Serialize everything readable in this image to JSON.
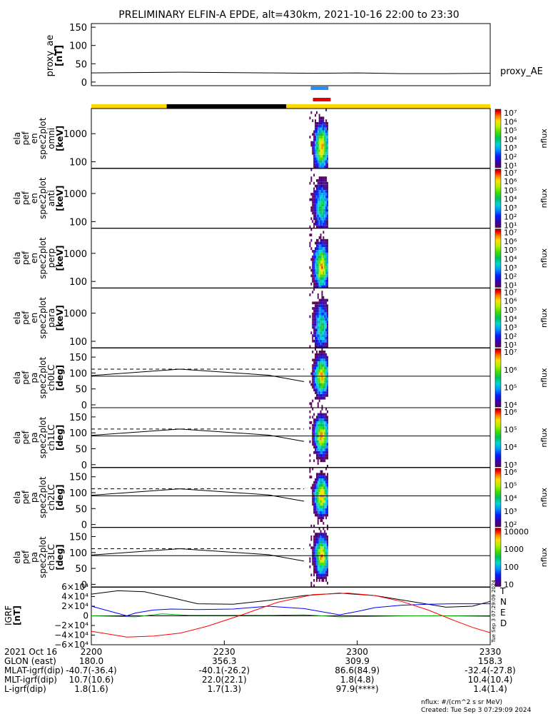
{
  "title": "PRELIMINARY ELFIN-A EPDE, alt=430km, 2021-10-16 22:00 to 23:30",
  "proxy": {
    "ylabel": "proxy_ae",
    "unit": "[nT]",
    "label": "proxy_AE",
    "ticks": [
      "150",
      "100",
      "50",
      "0"
    ],
    "ylim": [
      -10,
      160
    ],
    "x": [
      0,
      10,
      20,
      30,
      40,
      50,
      60,
      70,
      80,
      90
    ],
    "y": [
      25,
      26,
      27,
      26,
      25,
      24,
      25,
      23,
      23,
      24
    ]
  },
  "status_bars": {
    "segments": [
      {
        "start": 0,
        "end": 17,
        "color": "#ffd800"
      },
      {
        "start": 17,
        "end": 44,
        "color": "#000000"
      },
      {
        "start": 44,
        "end": 90,
        "color": "#ffd800"
      }
    ],
    "blue_bar": {
      "start": 49.5,
      "end": 53.5,
      "color": "#1e90ff"
    },
    "red_bar": {
      "start": 50,
      "end": 54,
      "color": "#e00000"
    }
  },
  "spectra_panels": [
    {
      "label": [
        "ela",
        "pef",
        "en",
        "spec2plot",
        "omni",
        "[keV]"
      ],
      "ticks": [
        "1000",
        "100"
      ],
      "cbar_ticks": [
        "10⁷",
        "10⁶",
        "10⁵",
        "10⁴",
        "10³",
        "10²",
        "10¹"
      ],
      "cbar_unit": "nflux"
    },
    {
      "label": [
        "ela",
        "pef",
        "en",
        "spec2plot",
        "anti",
        "[keV]"
      ],
      "ticks": [
        "1000",
        "100"
      ],
      "cbar_ticks": [
        "10⁷",
        "10⁶",
        "10⁵",
        "10⁴",
        "10³",
        "10²",
        "10¹"
      ],
      "cbar_unit": "nflux"
    },
    {
      "label": [
        "ela",
        "pef",
        "en",
        "spec2plot",
        "perp",
        "[keV]"
      ],
      "ticks": [
        "1000",
        "100"
      ],
      "cbar_ticks": [
        "10⁷",
        "10⁶",
        "10⁵",
        "10⁴",
        "10³",
        "10²",
        "10¹"
      ],
      "cbar_unit": "nflux"
    },
    {
      "label": [
        "ela",
        "pef",
        "en",
        "spec2plot",
        "para",
        "[keV]"
      ],
      "ticks": [
        "1000",
        "100"
      ],
      "cbar_ticks": [
        "10⁷",
        "10⁶",
        "10⁵",
        "10⁴",
        "10³",
        "10²",
        "10¹"
      ],
      "cbar_unit": "nflux"
    }
  ],
  "pa_panels": [
    {
      "label": [
        "ela",
        "pef",
        "pa",
        "spec2plot",
        "ch0LC",
        "[deg]"
      ],
      "ticks": [
        "150",
        "100",
        "50",
        "0"
      ],
      "cbar_ticks": [
        "10⁷",
        "10⁶",
        "10⁵",
        "10⁴"
      ],
      "cbar_unit": "nflux"
    },
    {
      "label": [
        "ela",
        "pef",
        "pa",
        "spec2plot",
        "ch1LC",
        "[deg]"
      ],
      "ticks": [
        "150",
        "100",
        "50",
        "0"
      ],
      "cbar_ticks": [
        "10⁶",
        "10⁵",
        "10⁴",
        "10³"
      ],
      "cbar_unit": "nflux"
    },
    {
      "label": [
        "ela",
        "pef",
        "pa",
        "spec2plot",
        "ch2LC",
        "[deg]"
      ],
      "ticks": [
        "150",
        "100",
        "50",
        "0"
      ],
      "cbar_ticks": [
        "10⁶",
        "10⁵",
        "10⁴",
        "10³",
        "10²"
      ],
      "cbar_unit": "nflux"
    },
    {
      "label": [
        "ela",
        "pef",
        "pa",
        "spec2plot",
        "ch3LC",
        "[deg]"
      ],
      "ticks": [
        "150",
        "100",
        "50",
        "0"
      ],
      "cbar_ticks": [
        "10000",
        "1000",
        "100",
        "10"
      ],
      "cbar_unit": "nflux"
    }
  ],
  "igrf": {
    "ylabel": "IGRF",
    "unit": "[nT]",
    "ticks": [
      "6×10⁴",
      "4×10⁴",
      "2×10⁴",
      "0",
      "−2×10⁴",
      "−4×10⁴",
      "−6×10⁴"
    ],
    "ylim": [
      -60000,
      60000
    ],
    "legend": [
      {
        "name": "T",
        "color": "#000000"
      },
      {
        "name": "N",
        "color": "#0000ff"
      },
      {
        "name": "E",
        "color": "#00aa00"
      },
      {
        "name": "D",
        "color": "#ff0000"
      }
    ],
    "series": {
      "T": {
        "x": [
          0,
          6,
          12,
          18,
          24,
          32,
          40,
          48,
          56,
          64,
          72,
          80,
          86,
          90
        ],
        "y": [
          45000,
          52000,
          50000,
          38000,
          25000,
          24000,
          32000,
          42000,
          47000,
          42000,
          30000,
          18000,
          20000,
          30000
        ]
      },
      "N": {
        "x": [
          0,
          6,
          8,
          10,
          14,
          18,
          24,
          32,
          40,
          48,
          56,
          60,
          64,
          70,
          76,
          82,
          90
        ],
        "y": [
          20000,
          5000,
          0,
          6000,
          12000,
          14000,
          13000,
          14000,
          20000,
          15000,
          2000,
          9000,
          17000,
          22000,
          24000,
          25000,
          25000
        ]
      },
      "E": {
        "x": [
          0,
          10,
          16,
          22,
          40,
          48,
          56,
          64,
          72,
          80,
          90
        ],
        "y": [
          0,
          -2000,
          4000,
          1000,
          1000,
          2000,
          -2000,
          -1000,
          0,
          0,
          -1000
        ]
      },
      "D": {
        "x": [
          0,
          8,
          14,
          20,
          26,
          34,
          42,
          50,
          58,
          64,
          70,
          76,
          82,
          86,
          90
        ],
        "y": [
          -32000,
          -44000,
          -42000,
          -36000,
          -22000,
          2000,
          28000,
          44000,
          47000,
          42000,
          30000,
          12000,
          -10000,
          -24000,
          -35000
        ]
      }
    },
    "side_text": "Tue Sep  3 07:29:09 2024"
  },
  "xaxis": {
    "ticks": [
      "2200",
      "2230",
      "2300",
      "2330"
    ],
    "tick_minutes": [
      0,
      30,
      60,
      90
    ],
    "range_minutes": [
      0,
      90
    ]
  },
  "footer": {
    "rows": [
      {
        "label": "2021 Oct 16",
        "values": [
          "2200",
          "2230",
          "2300",
          "2330"
        ]
      },
      {
        "label": "GLON (east)",
        "values": [
          "180.0",
          "356.3",
          "309.9",
          "158.3"
        ]
      },
      {
        "label": "MLAT-igrf(dip)",
        "values": [
          "-40.7(-36.4)",
          "-40.1(-26.2)",
          "86.6(84.9)",
          "-32.4(-27.8)"
        ]
      },
      {
        "label": "MLT-igrf(dip)",
        "values": [
          "10.7(10.6)",
          "22.0(22.1)",
          "1.8(4.8)",
          "10.4(10.4)"
        ]
      },
      {
        "label": "L-igrf(dip)",
        "values": [
          "1.8(1.6)",
          "1.7(1.3)",
          "97.9(****)",
          "1.4(1.4)"
        ]
      }
    ],
    "unit_note": "nflux: #/(cm^2 s sr MeV)",
    "created": "Created: Tue Sep  3 07:29:09 2024"
  },
  "colors": {
    "colorbar": [
      "#5a005a",
      "#3a00b0",
      "#0020ff",
      "#0090ff",
      "#00d8d0",
      "#00c060",
      "#40e000",
      "#b0f000",
      "#ffe000",
      "#ff8000",
      "#ff0000",
      "#a00000"
    ]
  }
}
